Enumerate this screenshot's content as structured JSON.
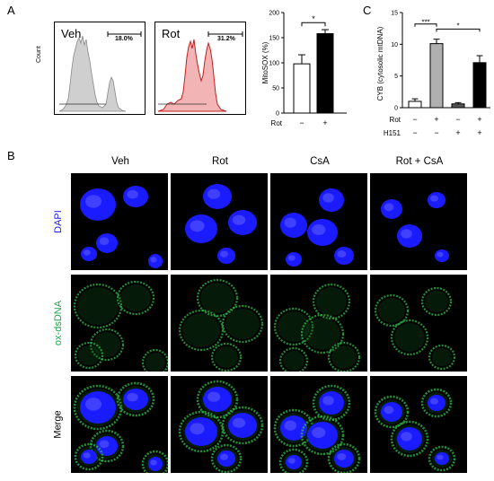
{
  "panel_A": {
    "letter": "A",
    "hist_left": {
      "label": "Veh",
      "pct": "18.0%"
    },
    "hist_right": {
      "label": "Rot",
      "pct": "31.2%"
    },
    "hist_ylabel": "Count",
    "bar": {
      "ylabel": "MitoSOX (%)",
      "ticks": [
        "0",
        "50",
        "100",
        "150",
        "200"
      ],
      "xrow_label": "Rot",
      "x_signs": [
        "−",
        "+"
      ],
      "sig": "*"
    }
  },
  "panel_C": {
    "letter": "C",
    "ylabel": "CYB (cytosolic mtDNA)",
    "ticks": [
      "0",
      "5",
      "10",
      "15"
    ],
    "rot_label": "Rot",
    "rot_signs": [
      "−",
      "+",
      "−",
      "+"
    ],
    "h151_label": "H151",
    "h151_signs": [
      "−",
      "−",
      "+",
      "+"
    ],
    "sig1": "***",
    "sig2": "*"
  },
  "panel_B": {
    "letter": "B",
    "columns": [
      "Veh",
      "Rot",
      "CsA",
      "Rot + CsA"
    ],
    "rows": [
      {
        "label": "DAPI",
        "color": "#1a1aff"
      },
      {
        "label": "ox-dsDNA",
        "color": "#1aa64a"
      },
      {
        "label": "Merge",
        "color": "#000000"
      }
    ]
  },
  "chart_data": [
    {
      "type": "bar",
      "categories": [
        "−",
        "+"
      ],
      "values": [
        98,
        158
      ],
      "errors": [
        18,
        8
      ],
      "ylabel": "MitoSOX (%)",
      "ylim": [
        0,
        200
      ],
      "colors": [
        "#ffffff",
        "#000000"
      ]
    },
    {
      "type": "bar",
      "categories": [
        "Rot − / H151 −",
        "Rot + / H151 −",
        "Rot − / H151 +",
        "Rot + / H151 +"
      ],
      "values": [
        1.0,
        10.1,
        0.6,
        7.1
      ],
      "errors": [
        0.4,
        0.7,
        0.2,
        1.1
      ],
      "ylabel": "CYB (cytosolic mtDNA)",
      "ylim": [
        0,
        15
      ],
      "colors": [
        "#ffffff",
        "#b0b0b0",
        "#555555",
        "#000000"
      ]
    }
  ]
}
